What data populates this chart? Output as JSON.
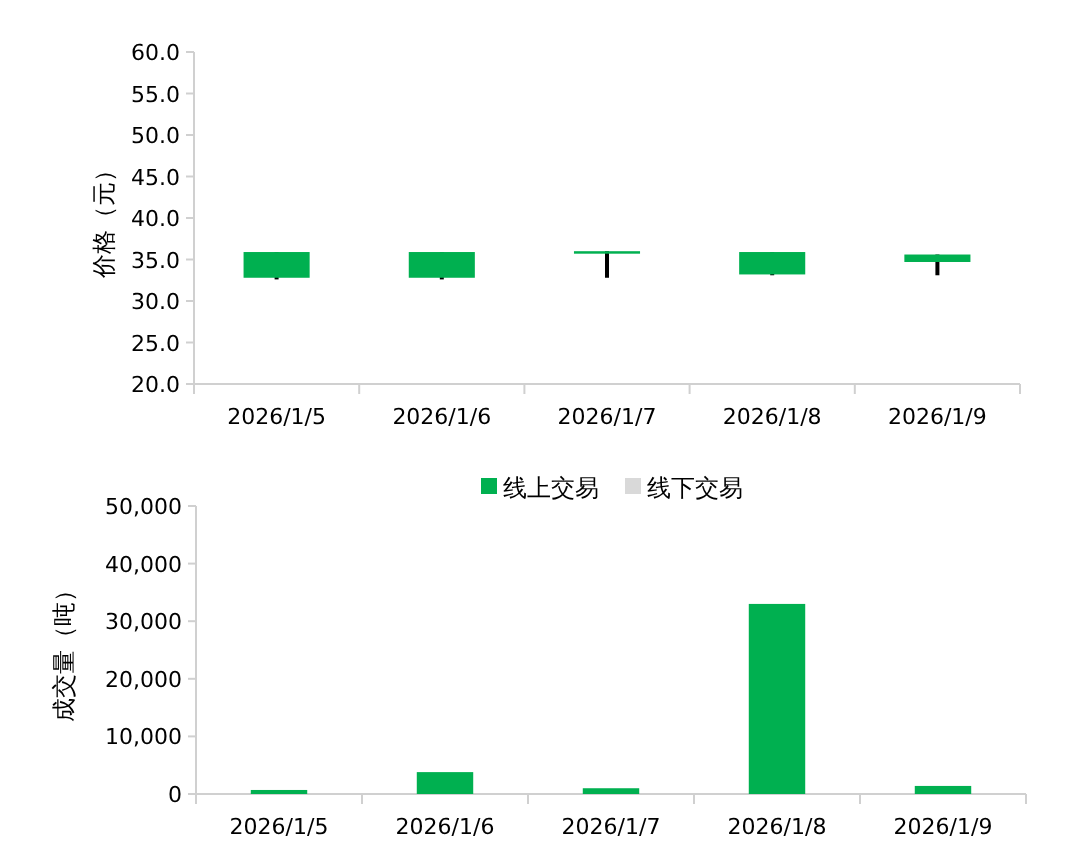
{
  "chart_data": [
    {
      "type": "candlestick",
      "categories": [
        "2026/1/5",
        "2026/1/6",
        "2026/1/7",
        "2026/1/8",
        "2026/1/9"
      ],
      "ohlc": [
        [
          35.9,
          35.9,
          32.6,
          32.8
        ],
        [
          35.9,
          35.9,
          32.6,
          32.8
        ],
        [
          36.0,
          36.0,
          32.8,
          35.7
        ],
        [
          35.9,
          35.9,
          33.1,
          33.2
        ],
        [
          35.6,
          35.6,
          33.1,
          34.7
        ]
      ],
      "color": "#00b050",
      "ylabel": "价格（元）",
      "ylim": [
        20,
        60
      ],
      "yticks": [
        {
          "value": 20,
          "label": "20.0"
        },
        {
          "value": 25,
          "label": "25.0"
        },
        {
          "value": 30,
          "label": "30.0"
        },
        {
          "value": 35,
          "label": "35.0"
        },
        {
          "value": 40,
          "label": "40.0"
        },
        {
          "value": 45,
          "label": "45.0"
        },
        {
          "value": 50,
          "label": "50.0"
        },
        {
          "value": 55,
          "label": "55.0"
        },
        {
          "value": 60,
          "label": "60.0"
        }
      ]
    },
    {
      "type": "bar",
      "stacked": true,
      "categories": [
        "2026/1/5",
        "2026/1/6",
        "2026/1/7",
        "2026/1/8",
        "2026/1/9"
      ],
      "series": [
        {
          "name": "线上交易",
          "color": "#00b050",
          "values": [
            700,
            3800,
            1000,
            33000,
            1400
          ]
        },
        {
          "name": "线下交易",
          "color": "#d9d9d9",
          "values": [
            0,
            0,
            0,
            0,
            0
          ]
        }
      ],
      "ylabel": "成交量（吨）",
      "ylim": [
        0,
        50000
      ],
      "yticks": [
        {
          "value": 0,
          "label": "0"
        },
        {
          "value": 10000,
          "label": "10,000"
        },
        {
          "value": 20000,
          "label": "20,000"
        },
        {
          "value": 30000,
          "label": "30,000"
        },
        {
          "value": 40000,
          "label": "40,000"
        },
        {
          "value": 50000,
          "label": "50,000"
        }
      ],
      "legend": "top"
    }
  ]
}
